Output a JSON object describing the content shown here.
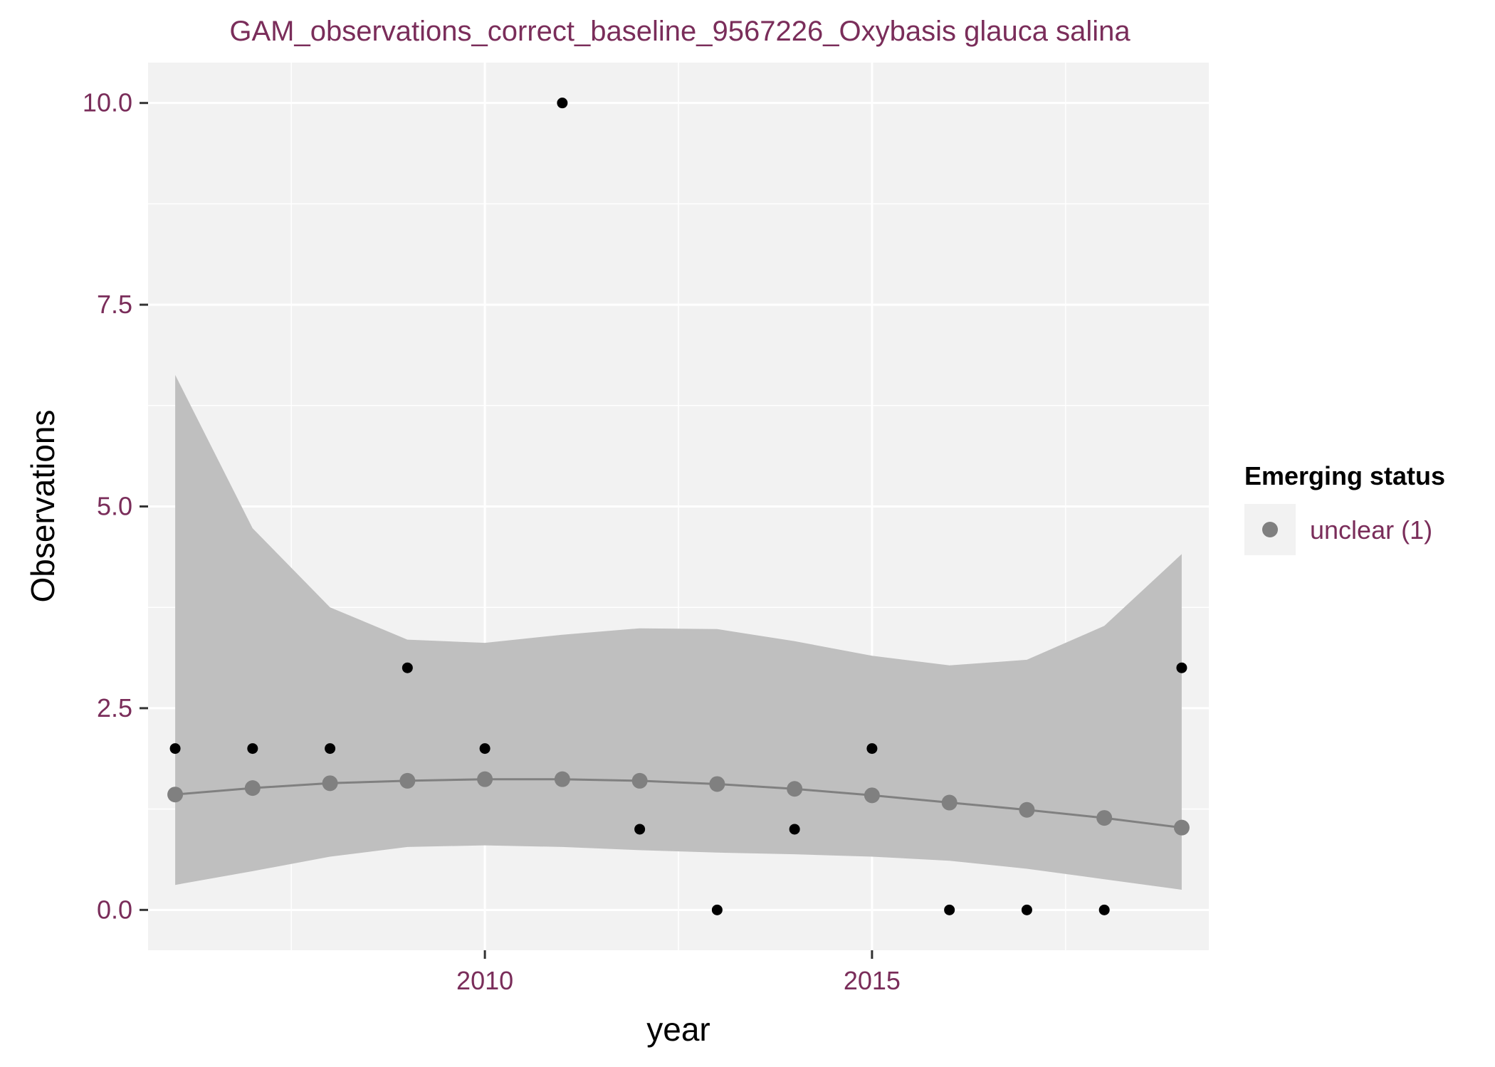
{
  "chart_data": {
    "type": "scatter",
    "title": "GAM_observations_correct_baseline_9567226_Oxybasis glauca salina",
    "xlabel": "year",
    "ylabel": "Observations",
    "xlim": [
      2005.65,
      2019.35
    ],
    "ylim": [
      -0.5,
      10.5
    ],
    "x_ticks": [
      2010,
      2015
    ],
    "x_tick_labels": [
      "2010",
      "2015"
    ],
    "y_ticks": [
      0,
      2.5,
      5,
      7.5,
      10
    ],
    "y_tick_labels": [
      "0.0",
      "2.5",
      "5.0",
      "7.5",
      "10.0"
    ],
    "grid": true,
    "legend": {
      "title": "Emerging status",
      "position": "right",
      "entries": [
        {
          "label": "unclear (1)",
          "color": "#808080"
        }
      ]
    },
    "colors": {
      "panel": "#f2f2f2",
      "grid": "#ffffff",
      "ribbon": "#bfbfbf",
      "fit": "#808080",
      "observed": "#000000"
    },
    "series": [
      {
        "name": "observed",
        "kind": "points",
        "x": [
          2006,
          2007,
          2008,
          2009,
          2010,
          2011,
          2012,
          2013,
          2014,
          2015,
          2016,
          2017,
          2018,
          2019
        ],
        "y": [
          2,
          2,
          2,
          3,
          2,
          10,
          1,
          0,
          1,
          2,
          0,
          0,
          0,
          3
        ]
      },
      {
        "name": "unclear (1)",
        "kind": "fit",
        "x": [
          2006,
          2007,
          2008,
          2009,
          2010,
          2011,
          2012,
          2013,
          2014,
          2015,
          2016,
          2017,
          2018,
          2019
        ],
        "y": [
          1.43,
          1.51,
          1.57,
          1.6,
          1.62,
          1.62,
          1.6,
          1.56,
          1.5,
          1.42,
          1.33,
          1.24,
          1.14,
          1.02
        ],
        "lower": [
          0.31,
          0.48,
          0.66,
          0.78,
          0.8,
          0.78,
          0.74,
          0.71,
          0.69,
          0.66,
          0.61,
          0.51,
          0.38,
          0.25
        ],
        "upper": [
          6.63,
          4.73,
          3.75,
          3.35,
          3.31,
          3.41,
          3.49,
          3.48,
          3.33,
          3.15,
          3.03,
          3.1,
          3.52,
          4.41
        ]
      }
    ]
  }
}
